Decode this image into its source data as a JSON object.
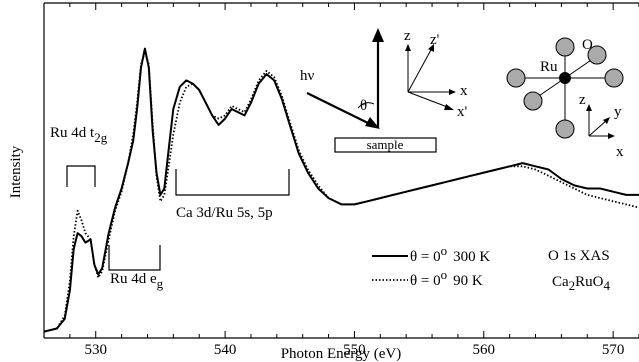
{
  "chart_data": {
    "type": "line",
    "title": "",
    "xlabel": "Photon Energy (eV)",
    "ylabel": "Intensity",
    "xlim": [
      526,
      572
    ],
    "ylim": [
      0,
      1.0
    ],
    "xticks": [
      530,
      540,
      550,
      560,
      570
    ],
    "xtick_labels": [
      "530",
      "540",
      "550",
      "560",
      "570"
    ],
    "grid": false,
    "legend_position": "bottom-right",
    "series": [
      {
        "name": "θ = 0° 300 K",
        "color": "#000000",
        "style": "solid",
        "points": [
          [
            526,
            0.02
          ],
          [
            527.0,
            0.03
          ],
          [
            527.6,
            0.06
          ],
          [
            528.0,
            0.15
          ],
          [
            528.3,
            0.28
          ],
          [
            528.6,
            0.33
          ],
          [
            528.9,
            0.32
          ],
          [
            529.2,
            0.3
          ],
          [
            529.6,
            0.31
          ],
          [
            529.9,
            0.23
          ],
          [
            530.2,
            0.2
          ],
          [
            530.5,
            0.22
          ],
          [
            531.0,
            0.33
          ],
          [
            531.5,
            0.41
          ],
          [
            532.0,
            0.47
          ],
          [
            532.5,
            0.55
          ],
          [
            532.9,
            0.62
          ],
          [
            533.2,
            0.72
          ],
          [
            533.5,
            0.85
          ],
          [
            533.8,
            0.91
          ],
          [
            534.1,
            0.85
          ],
          [
            534.4,
            0.65
          ],
          [
            534.7,
            0.52
          ],
          [
            535.0,
            0.45
          ],
          [
            535.3,
            0.47
          ],
          [
            535.6,
            0.58
          ],
          [
            536.0,
            0.72
          ],
          [
            536.5,
            0.79
          ],
          [
            537.0,
            0.81
          ],
          [
            537.5,
            0.8
          ],
          [
            538.0,
            0.78
          ],
          [
            538.5,
            0.74
          ],
          [
            539.0,
            0.7
          ],
          [
            539.5,
            0.67
          ],
          [
            540.0,
            0.69
          ],
          [
            540.5,
            0.72
          ],
          [
            541.0,
            0.71
          ],
          [
            541.5,
            0.7
          ],
          [
            542.0,
            0.74
          ],
          [
            542.6,
            0.8
          ],
          [
            543.2,
            0.83
          ],
          [
            543.8,
            0.81
          ],
          [
            544.4,
            0.75
          ],
          [
            545.0,
            0.67
          ],
          [
            545.7,
            0.58
          ],
          [
            546.4,
            0.52
          ],
          [
            547.2,
            0.47
          ],
          [
            548.0,
            0.44
          ],
          [
            549.0,
            0.42
          ],
          [
            550.0,
            0.42
          ],
          [
            551.0,
            0.43
          ],
          [
            552.0,
            0.44
          ],
          [
            553.0,
            0.45
          ],
          [
            554.0,
            0.46
          ],
          [
            555.0,
            0.47
          ],
          [
            556.0,
            0.48
          ],
          [
            557.0,
            0.49
          ],
          [
            558.0,
            0.5
          ],
          [
            559.0,
            0.51
          ],
          [
            560.0,
            0.52
          ],
          [
            561.0,
            0.53
          ],
          [
            562.0,
            0.54
          ],
          [
            563.0,
            0.55
          ],
          [
            564.0,
            0.54
          ],
          [
            565.0,
            0.53
          ],
          [
            566.0,
            0.5
          ],
          [
            567.0,
            0.48
          ],
          [
            568.0,
            0.47
          ],
          [
            569.0,
            0.47
          ],
          [
            570.0,
            0.46
          ],
          [
            571.0,
            0.45
          ],
          [
            572.0,
            0.45
          ]
        ]
      },
      {
        "name": "θ = 0° 90 K",
        "color": "#000000",
        "style": "dotted",
        "points": [
          [
            526,
            0.02
          ],
          [
            527.0,
            0.03
          ],
          [
            527.6,
            0.07
          ],
          [
            528.0,
            0.18
          ],
          [
            528.3,
            0.32
          ],
          [
            528.6,
            0.4
          ],
          [
            528.9,
            0.37
          ],
          [
            529.2,
            0.33
          ],
          [
            529.6,
            0.31
          ],
          [
            529.9,
            0.23
          ],
          [
            530.2,
            0.19
          ],
          [
            530.5,
            0.21
          ],
          [
            531.0,
            0.31
          ],
          [
            531.5,
            0.4
          ],
          [
            532.0,
            0.46
          ],
          [
            532.5,
            0.55
          ],
          [
            532.9,
            0.64
          ],
          [
            533.2,
            0.74
          ],
          [
            533.5,
            0.86
          ],
          [
            533.8,
            0.9
          ],
          [
            534.1,
            0.86
          ],
          [
            534.4,
            0.67
          ],
          [
            534.7,
            0.51
          ],
          [
            535.0,
            0.43
          ],
          [
            535.3,
            0.45
          ],
          [
            535.6,
            0.53
          ],
          [
            536.0,
            0.64
          ],
          [
            536.5,
            0.74
          ],
          [
            537.0,
            0.79
          ],
          [
            537.5,
            0.8
          ],
          [
            538.0,
            0.78
          ],
          [
            538.5,
            0.74
          ],
          [
            539.0,
            0.7
          ],
          [
            539.5,
            0.69
          ],
          [
            540.0,
            0.7
          ],
          [
            540.5,
            0.73
          ],
          [
            541.0,
            0.72
          ],
          [
            541.5,
            0.71
          ],
          [
            542.0,
            0.75
          ],
          [
            542.6,
            0.81
          ],
          [
            543.2,
            0.84
          ],
          [
            543.8,
            0.82
          ],
          [
            544.4,
            0.76
          ],
          [
            545.0,
            0.68
          ],
          [
            545.7,
            0.59
          ],
          [
            546.4,
            0.53
          ],
          [
            547.2,
            0.48
          ],
          [
            548.0,
            0.44
          ],
          [
            549.0,
            0.42
          ],
          [
            550.0,
            0.42
          ],
          [
            551.0,
            0.43
          ],
          [
            552.0,
            0.44
          ],
          [
            553.0,
            0.45
          ],
          [
            554.0,
            0.46
          ],
          [
            555.0,
            0.47
          ],
          [
            556.0,
            0.48
          ],
          [
            557.0,
            0.49
          ],
          [
            558.0,
            0.5
          ],
          [
            559.0,
            0.51
          ],
          [
            560.0,
            0.52
          ],
          [
            561.0,
            0.53
          ],
          [
            562.0,
            0.54
          ],
          [
            563.0,
            0.54
          ],
          [
            564.0,
            0.53
          ],
          [
            565.0,
            0.51
          ],
          [
            566.0,
            0.49
          ],
          [
            567.0,
            0.47
          ],
          [
            568.0,
            0.45
          ],
          [
            569.0,
            0.44
          ],
          [
            570.0,
            0.43
          ],
          [
            571.0,
            0.42
          ],
          [
            572.0,
            0.41
          ]
        ]
      }
    ],
    "annotations": {
      "ru_t2g": {
        "main": "Ru 4d t",
        "sub": "2g"
      },
      "ru_eg": {
        "main": "Ru 4d e",
        "sub": "g"
      },
      "ca_ru": "Ca 3d/Ru 5s, 5p",
      "o1s": "O 1s XAS",
      "compound": {
        "a": "Ca",
        "b": "2",
        "c": "RuO",
        "d": "4"
      },
      "geometry": {
        "hv": "hν",
        "theta": "θ",
        "sample": "sample",
        "z": "z",
        "z_prime": "z'",
        "x": "x",
        "x_prime": "x'"
      },
      "octahedron": {
        "ru": "Ru",
        "o": "O",
        "z": "z",
        "y": "y",
        "x": "x"
      }
    },
    "legend": [
      {
        "theta": "θ = 0",
        "deg": "o",
        "temp": "300 K"
      },
      {
        "theta": "θ = 0",
        "deg": "o",
        "temp": "90 K"
      }
    ]
  }
}
